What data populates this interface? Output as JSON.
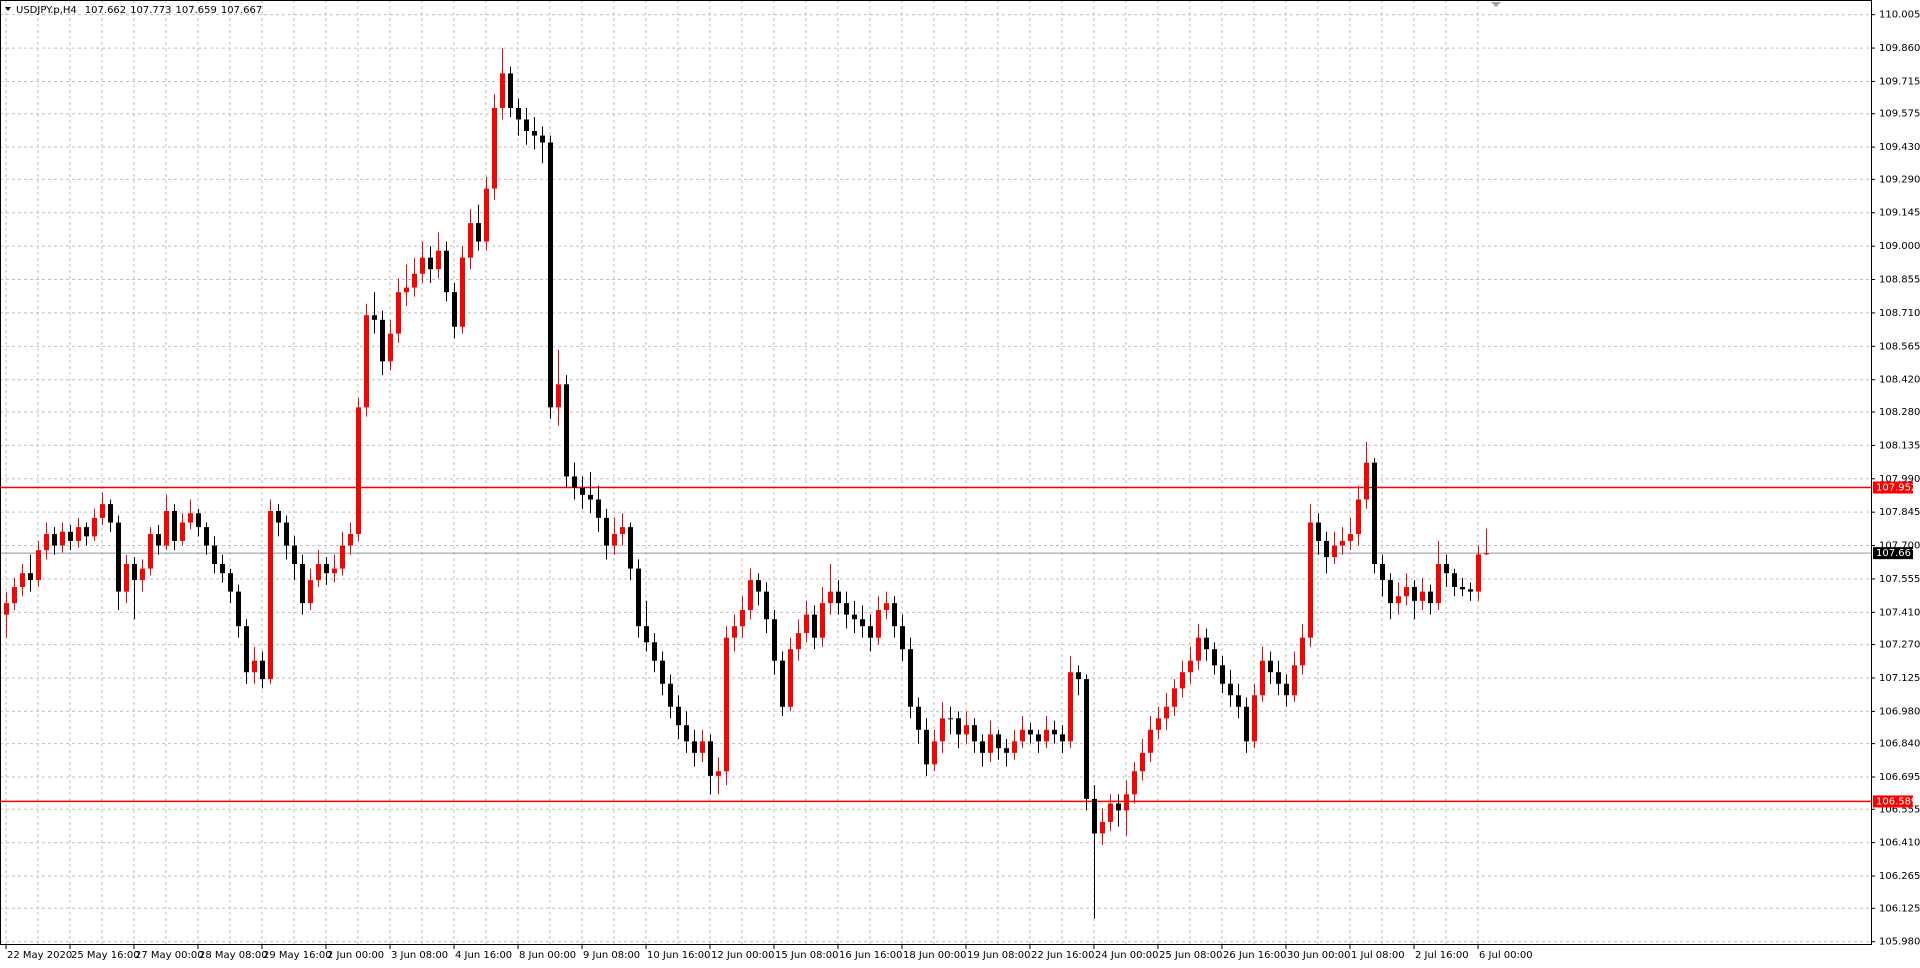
{
  "chart_data": {
    "type": "candlestick",
    "symbol": "USDJPY.p,H4",
    "up_color": "#ff0000",
    "down_color": "#000000",
    "grid": true,
    "ylim": [
      105.97,
      110.06
    ],
    "yticks": [
      110.005,
      {
        "value": 109.86,
        "label": "109.860"
      },
      109.715,
      109.575,
      {
        "value": 109.43,
        "label": "109.430"
      },
      {
        "value": 109.29,
        "label": "109.290"
      },
      109.145,
      {
        "value": 109,
        "label": "109.000"
      },
      108.855,
      {
        "value": 108.71,
        "label": "108.710"
      },
      108.565,
      {
        "value": 108.42,
        "label": "108.420"
      },
      {
        "value": 108.28,
        "label": "108.280"
      },
      108.135,
      {
        "value": 107.99,
        "label": "107.990"
      },
      107.845,
      {
        "value": 107.7,
        "label": "107.700"
      },
      107.555,
      {
        "value": 107.41,
        "label": "107.410"
      },
      {
        "value": 107.27,
        "label": "107.270"
      },
      107.125,
      {
        "value": 106.98,
        "label": "106.980"
      },
      {
        "value": 106.84,
        "label": "106.840"
      },
      106.695,
      106.555,
      {
        "value": 106.41,
        "label": "106.410"
      },
      106.265,
      106.125,
      {
        "value": 105.98,
        "label": "105.980"
      }
    ],
    "levels": [
      {
        "value": 107.952,
        "color": "#ff0000"
      },
      {
        "value": 106.589,
        "color": "#ff0000"
      }
    ],
    "categories": [
      "22 May 2020",
      null,
      null,
      null,
      null,
      null,
      null,
      null,
      "25 May 16:00",
      null,
      null,
      null,
      null,
      null,
      null,
      null,
      "27 May 00:00",
      null,
      null,
      null,
      null,
      null,
      null,
      null,
      "28 May 08:00",
      null,
      null,
      null,
      null,
      null,
      null,
      null,
      "29 May 16:00",
      null,
      null,
      null,
      null,
      null,
      null,
      null,
      "2 Jun 00:00",
      null,
      null,
      null,
      null,
      null,
      null,
      null,
      "3 Jun 08:00",
      null,
      null,
      null,
      null,
      null,
      null,
      null,
      "4 Jun 16:00",
      null,
      null,
      null,
      null,
      null,
      null,
      null,
      "8 Jun 00:00",
      null,
      null,
      null,
      null,
      null,
      null,
      null,
      "9 Jun 08:00",
      null,
      null,
      null,
      null,
      null,
      null,
      null,
      "10 Jun 16:00",
      null,
      null,
      null,
      null,
      null,
      null,
      null,
      "12 Jun 00:00",
      null,
      null,
      null,
      null,
      null,
      null,
      null,
      "15 Jun 08:00",
      null,
      null,
      null,
      null,
      null,
      null,
      null,
      "16 Jun 16:00",
      null,
      null,
      null,
      null,
      null,
      null,
      null,
      "18 Jun 00:00",
      null,
      null,
      null,
      null,
      null,
      null,
      null,
      "19 Jun 08:00",
      null,
      null,
      null,
      null,
      null,
      null,
      null,
      "22 Jun 16:00",
      null,
      null,
      null,
      null,
      null,
      null,
      null,
      "24 Jun 00:00",
      null,
      null,
      null,
      null,
      null,
      null,
      null,
      "25 Jun 08:00",
      null,
      null,
      null,
      null,
      null,
      null,
      null,
      "26 Jun 16:00",
      null,
      null,
      null,
      null,
      null,
      null,
      null,
      "30 Jun 00:00",
      null,
      null,
      null,
      null,
      null,
      null,
      null,
      "1 Jul 08:00",
      null,
      null,
      null,
      null,
      null,
      null,
      null,
      "2 Jul 16:00",
      null,
      null,
      null,
      null,
      null,
      null,
      null,
      "6 Jul 00:00",
      null
    ],
    "ohlc": [
      [
        107.4,
        107.5,
        107.3,
        107.45
      ],
      [
        107.45,
        107.56,
        107.42,
        107.52
      ],
      [
        107.52,
        107.62,
        107.48,
        107.58
      ],
      [
        107.58,
        107.66,
        107.5,
        107.55
      ],
      [
        107.55,
        107.72,
        107.52,
        107.68
      ],
      [
        107.68,
        107.8,
        107.64,
        107.75
      ],
      [
        107.75,
        107.78,
        107.66,
        107.7
      ],
      [
        107.7,
        107.8,
        107.67,
        107.76
      ],
      [
        107.76,
        107.79,
        107.68,
        107.72
      ],
      [
        107.72,
        107.82,
        107.69,
        107.78
      ],
      [
        107.78,
        107.8,
        107.7,
        107.74
      ],
      [
        107.74,
        107.86,
        107.72,
        107.82
      ],
      [
        107.82,
        107.93,
        107.79,
        107.88
      ],
      [
        107.88,
        107.9,
        107.76,
        107.8
      ],
      [
        107.8,
        107.83,
        107.42,
        107.5
      ],
      [
        107.5,
        107.66,
        107.45,
        107.62
      ],
      [
        107.62,
        107.65,
        107.38,
        107.55
      ],
      [
        107.55,
        107.64,
        107.5,
        107.6
      ],
      [
        107.6,
        107.78,
        107.57,
        107.75
      ],
      [
        107.75,
        107.79,
        107.66,
        107.7
      ],
      [
        107.7,
        107.92,
        107.68,
        107.85
      ],
      [
        107.85,
        107.88,
        107.68,
        107.72
      ],
      [
        107.72,
        107.84,
        107.7,
        107.8
      ],
      [
        107.8,
        107.9,
        107.77,
        107.84
      ],
      [
        107.84,
        107.86,
        107.74,
        107.78
      ],
      [
        107.78,
        107.8,
        107.66,
        107.7
      ],
      [
        107.7,
        107.74,
        107.58,
        107.62
      ],
      [
        107.62,
        107.66,
        107.54,
        107.58
      ],
      [
        107.58,
        107.6,
        107.45,
        107.5
      ],
      [
        107.5,
        107.53,
        107.3,
        107.35
      ],
      [
        107.35,
        107.38,
        107.1,
        107.15
      ],
      [
        107.15,
        107.26,
        107.1,
        107.2
      ],
      [
        107.2,
        107.24,
        107.08,
        107.12
      ],
      [
        107.12,
        107.9,
        107.1,
        107.85
      ],
      [
        107.85,
        107.88,
        107.74,
        107.8
      ],
      [
        107.8,
        107.83,
        107.64,
        107.7
      ],
      [
        107.7,
        107.74,
        107.55,
        107.62
      ],
      [
        107.62,
        107.66,
        107.4,
        107.45
      ],
      [
        107.45,
        107.6,
        107.42,
        107.55
      ],
      [
        107.55,
        107.68,
        107.52,
        107.62
      ],
      [
        107.62,
        107.65,
        107.53,
        107.58
      ],
      [
        107.58,
        107.66,
        107.54,
        107.6
      ],
      [
        107.6,
        107.76,
        107.57,
        107.7
      ],
      [
        107.7,
        107.8,
        107.66,
        107.75
      ],
      [
        107.75,
        108.34,
        107.72,
        108.3
      ],
      [
        108.3,
        108.75,
        108.26,
        108.7
      ],
      [
        108.7,
        108.8,
        108.62,
        108.68
      ],
      [
        108.68,
        108.72,
        108.44,
        108.5
      ],
      [
        108.5,
        108.68,
        108.46,
        108.62
      ],
      [
        108.62,
        108.86,
        108.58,
        108.8
      ],
      [
        108.8,
        108.92,
        108.74,
        108.82
      ],
      [
        108.82,
        108.95,
        108.78,
        108.88
      ],
      [
        108.88,
        109.02,
        108.84,
        108.95
      ],
      [
        108.95,
        109.0,
        108.84,
        108.9
      ],
      [
        108.9,
        109.06,
        108.86,
        108.98
      ],
      [
        108.98,
        109.02,
        108.76,
        108.8
      ],
      [
        108.8,
        108.84,
        108.6,
        108.65
      ],
      [
        108.65,
        109.0,
        108.62,
        108.95
      ],
      [
        108.95,
        109.16,
        108.9,
        109.1
      ],
      [
        109.1,
        109.18,
        108.98,
        109.02
      ],
      [
        109.02,
        109.3,
        108.98,
        109.25
      ],
      [
        109.25,
        109.66,
        109.2,
        109.6
      ],
      [
        109.6,
        109.86,
        109.55,
        109.75
      ],
      [
        109.75,
        109.78,
        109.56,
        109.6
      ],
      [
        109.6,
        109.64,
        109.48,
        109.55
      ],
      [
        109.55,
        109.6,
        109.44,
        109.5
      ],
      [
        109.5,
        109.56,
        109.42,
        109.48
      ],
      [
        109.48,
        109.52,
        109.36,
        109.45
      ],
      [
        109.45,
        109.48,
        108.25,
        108.3
      ],
      [
        108.3,
        108.55,
        108.22,
        108.4
      ],
      [
        108.4,
        108.44,
        107.95,
        108.0
      ],
      [
        108.0,
        108.06,
        107.9,
        107.95
      ],
      [
        107.95,
        108.0,
        107.86,
        107.92
      ],
      [
        107.92,
        108.02,
        107.84,
        107.9
      ],
      [
        107.9,
        107.96,
        107.76,
        107.82
      ],
      [
        107.82,
        107.86,
        107.64,
        107.7
      ],
      [
        107.7,
        107.82,
        107.66,
        107.75
      ],
      [
        107.75,
        107.84,
        107.7,
        107.78
      ],
      [
        107.78,
        107.8,
        107.55,
        107.6
      ],
      [
        107.6,
        107.64,
        107.3,
        107.35
      ],
      [
        107.35,
        107.46,
        107.24,
        107.28
      ],
      [
        107.28,
        107.32,
        107.15,
        107.2
      ],
      [
        107.2,
        107.24,
        107.05,
        107.1
      ],
      [
        107.1,
        107.14,
        106.95,
        107.0
      ],
      [
        107.0,
        107.05,
        106.86,
        106.92
      ],
      [
        106.92,
        106.98,
        106.8,
        106.85
      ],
      [
        106.85,
        106.9,
        106.74,
        106.8
      ],
      [
        106.8,
        106.9,
        106.76,
        106.85
      ],
      [
        106.85,
        106.88,
        106.62,
        106.7
      ],
      [
        106.7,
        106.78,
        106.62,
        106.72
      ],
      [
        106.72,
        107.35,
        106.66,
        107.3
      ],
      [
        107.3,
        107.4,
        107.24,
        107.35
      ],
      [
        107.35,
        107.48,
        107.3,
        107.42
      ],
      [
        107.42,
        107.6,
        107.38,
        107.55
      ],
      [
        107.55,
        107.58,
        107.44,
        107.5
      ],
      [
        107.5,
        107.54,
        107.32,
        107.38
      ],
      [
        107.38,
        107.42,
        107.14,
        107.2
      ],
      [
        107.2,
        107.24,
        106.96,
        107.0
      ],
      [
        107.0,
        107.3,
        106.98,
        107.25
      ],
      [
        107.25,
        107.38,
        107.2,
        107.32
      ],
      [
        107.32,
        107.46,
        107.28,
        107.4
      ],
      [
        107.4,
        107.44,
        107.25,
        107.3
      ],
      [
        107.3,
        107.52,
        107.26,
        107.45
      ],
      [
        107.45,
        107.62,
        107.4,
        107.5
      ],
      [
        107.5,
        107.55,
        107.4,
        107.45
      ],
      [
        107.45,
        107.5,
        107.34,
        107.4
      ],
      [
        107.4,
        107.46,
        107.32,
        107.38
      ],
      [
        107.38,
        107.44,
        107.3,
        107.35
      ],
      [
        107.35,
        107.4,
        107.24,
        107.3
      ],
      [
        107.3,
        107.48,
        107.27,
        107.42
      ],
      [
        107.42,
        107.5,
        107.38,
        107.45
      ],
      [
        107.45,
        107.48,
        107.3,
        107.35
      ],
      [
        107.35,
        107.4,
        107.2,
        107.25
      ],
      [
        107.25,
        107.3,
        106.95,
        107.0
      ],
      [
        107.0,
        107.04,
        106.84,
        106.9
      ],
      [
        106.9,
        106.95,
        106.7,
        106.75
      ],
      [
        106.75,
        106.9,
        106.72,
        106.85
      ],
      [
        106.85,
        107.02,
        106.8,
        106.95
      ],
      [
        106.95,
        107.0,
        106.88,
        106.95
      ],
      [
        106.95,
        106.98,
        106.82,
        106.88
      ],
      [
        106.88,
        106.98,
        106.84,
        106.92
      ],
      [
        106.92,
        106.95,
        106.8,
        106.85
      ],
      [
        106.85,
        106.88,
        106.74,
        106.8
      ],
      [
        106.8,
        106.94,
        106.76,
        106.88
      ],
      [
        106.88,
        106.9,
        106.77,
        106.82
      ],
      [
        106.82,
        106.86,
        106.74,
        106.8
      ],
      [
        106.8,
        106.9,
        106.77,
        106.85
      ],
      [
        106.85,
        106.96,
        106.82,
        106.9
      ],
      [
        106.9,
        106.93,
        106.84,
        106.88
      ],
      [
        106.88,
        106.9,
        106.8,
        106.85
      ],
      [
        106.85,
        106.96,
        106.82,
        106.9
      ],
      [
        106.9,
        106.94,
        106.84,
        106.88
      ],
      [
        106.88,
        106.92,
        106.8,
        106.85
      ],
      [
        106.85,
        107.22,
        106.82,
        107.15
      ],
      [
        107.15,
        107.18,
        107.05,
        107.12
      ],
      [
        107.12,
        107.14,
        106.55,
        106.6
      ],
      [
        106.6,
        106.66,
        106.08,
        106.45
      ],
      [
        106.45,
        106.56,
        106.4,
        106.5
      ],
      [
        106.5,
        106.62,
        106.46,
        106.58
      ],
      [
        106.58,
        106.62,
        106.48,
        106.55
      ],
      [
        106.55,
        106.68,
        106.44,
        106.62
      ],
      [
        106.62,
        106.76,
        106.58,
        106.72
      ],
      [
        106.72,
        106.86,
        106.68,
        106.8
      ],
      [
        106.8,
        106.96,
        106.76,
        106.9
      ],
      [
        106.9,
        107.0,
        106.86,
        106.95
      ],
      [
        106.95,
        107.06,
        106.9,
        107.0
      ],
      [
        107.0,
        107.12,
        106.96,
        107.08
      ],
      [
        107.08,
        107.2,
        107.04,
        107.15
      ],
      [
        107.15,
        107.26,
        107.1,
        107.2
      ],
      [
        107.2,
        107.36,
        107.16,
        107.3
      ],
      [
        107.3,
        107.34,
        107.2,
        107.25
      ],
      [
        107.25,
        107.28,
        107.14,
        107.18
      ],
      [
        107.18,
        107.22,
        107.06,
        107.1
      ],
      [
        107.1,
        107.16,
        107.0,
        107.05
      ],
      [
        107.05,
        107.1,
        106.95,
        107.0
      ],
      [
        107.0,
        107.04,
        106.8,
        106.85
      ],
      [
        106.85,
        107.1,
        106.82,
        107.05
      ],
      [
        107.05,
        107.26,
        107.02,
        107.2
      ],
      [
        107.2,
        107.24,
        107.1,
        107.15
      ],
      [
        107.15,
        107.2,
        107.05,
        107.1
      ],
      [
        107.1,
        107.14,
        107.0,
        107.05
      ],
      [
        107.05,
        107.24,
        107.02,
        107.18
      ],
      [
        107.18,
        107.36,
        107.14,
        107.3
      ],
      [
        107.3,
        107.88,
        107.26,
        107.8
      ],
      [
        107.8,
        107.84,
        107.66,
        107.72
      ],
      [
        107.72,
        107.76,
        107.58,
        107.65
      ],
      [
        107.65,
        107.76,
        107.62,
        107.7
      ],
      [
        107.7,
        107.78,
        107.66,
        107.72
      ],
      [
        107.72,
        107.82,
        107.68,
        107.75
      ],
      [
        107.75,
        107.96,
        107.7,
        107.9
      ],
      [
        107.9,
        108.15,
        107.86,
        108.06
      ],
      [
        108.06,
        108.08,
        107.58,
        107.62
      ],
      [
        107.62,
        107.66,
        107.48,
        107.55
      ],
      [
        107.55,
        107.58,
        107.38,
        107.45
      ],
      [
        107.45,
        107.54,
        107.4,
        107.48
      ],
      [
        107.48,
        107.58,
        107.44,
        107.52
      ],
      [
        107.52,
        107.55,
        107.38,
        107.46
      ],
      [
        107.46,
        107.56,
        107.42,
        107.5
      ],
      [
        107.5,
        107.53,
        107.4,
        107.45
      ],
      [
        107.45,
        107.72,
        107.42,
        107.62
      ],
      [
        107.62,
        107.66,
        107.52,
        107.58
      ],
      [
        107.58,
        107.6,
        107.48,
        107.52
      ],
      [
        107.52,
        107.56,
        107.48,
        107.51
      ],
      [
        107.51,
        107.54,
        107.46,
        107.5
      ],
      [
        107.5,
        107.7,
        107.46,
        107.662
      ],
      [
        107.662,
        107.773,
        107.659,
        107.667
      ]
    ]
  }
}
